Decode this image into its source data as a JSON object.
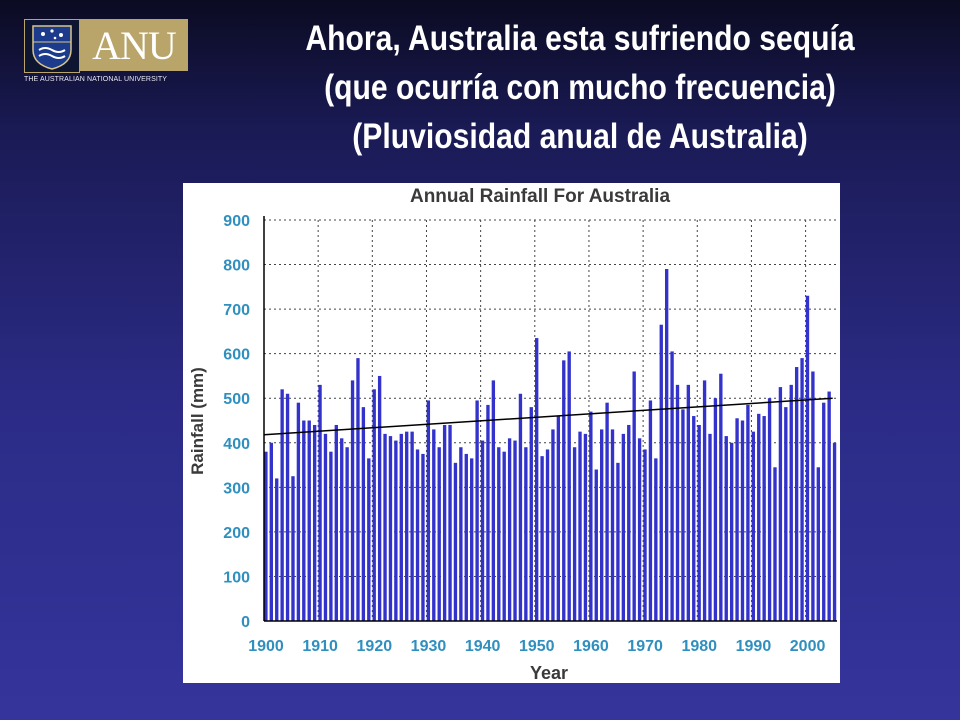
{
  "logo": {
    "wordmark": "ANU",
    "university_name": "THE AUSTRALIAN NATIONAL UNIVERSITY"
  },
  "slide": {
    "title_lines": [
      "Ahora, Australia esta sufriendo sequía",
      "(que ocurría con mucho frecuencia)",
      "(Pluviosidad anual de Australia)"
    ]
  },
  "colors": {
    "bar": "#3333cc",
    "trend": "#000000",
    "tick_text": "#2f8fbf",
    "grid": "#444444"
  },
  "chart_data": {
    "type": "bar",
    "title": "Annual Rainfall For Australia",
    "xlabel": "Year",
    "ylabel": "Rainfall (mm)",
    "ylim": [
      0,
      900
    ],
    "yticks": [
      0,
      100,
      200,
      300,
      400,
      500,
      600,
      700,
      800,
      900
    ],
    "xticks": [
      1900,
      1910,
      1920,
      1930,
      1940,
      1950,
      1960,
      1970,
      1980,
      1990,
      2000
    ],
    "grid": true,
    "x": [
      1900,
      1901,
      1902,
      1903,
      1904,
      1905,
      1906,
      1907,
      1908,
      1909,
      1910,
      1911,
      1912,
      1913,
      1914,
      1915,
      1916,
      1917,
      1918,
      1919,
      1920,
      1921,
      1922,
      1923,
      1924,
      1925,
      1926,
      1927,
      1928,
      1929,
      1930,
      1931,
      1932,
      1933,
      1934,
      1935,
      1936,
      1937,
      1938,
      1939,
      1940,
      1941,
      1942,
      1943,
      1944,
      1945,
      1946,
      1947,
      1948,
      1949,
      1950,
      1951,
      1952,
      1953,
      1954,
      1955,
      1956,
      1957,
      1958,
      1959,
      1960,
      1961,
      1962,
      1963,
      1964,
      1965,
      1966,
      1967,
      1968,
      1969,
      1970,
      1971,
      1972,
      1973,
      1974,
      1975,
      1976,
      1977,
      1978,
      1979,
      1980,
      1981,
      1982,
      1983,
      1984,
      1985,
      1986,
      1987,
      1988,
      1989,
      1990,
      1991,
      1992,
      1993,
      1994,
      1995,
      1996,
      1997,
      1998,
      1999,
      2000,
      2001,
      2002,
      2003,
      2004,
      2005
    ],
    "values": [
      380,
      400,
      320,
      520,
      510,
      325,
      490,
      450,
      450,
      440,
      530,
      420,
      380,
      440,
      410,
      390,
      540,
      590,
      480,
      365,
      520,
      550,
      420,
      415,
      405,
      420,
      425,
      425,
      385,
      375,
      495,
      430,
      390,
      440,
      440,
      355,
      390,
      375,
      365,
      495,
      405,
      485,
      540,
      390,
      380,
      410,
      405,
      510,
      390,
      480,
      635,
      370,
      385,
      430,
      460,
      585,
      605,
      390,
      425,
      420,
      470,
      340,
      430,
      490,
      430,
      355,
      420,
      440,
      560,
      410,
      385,
      495,
      365,
      665,
      790,
      605,
      530,
      475,
      530,
      460,
      440,
      540,
      420,
      500,
      555,
      415,
      400,
      455,
      450,
      485,
      425,
      465,
      460,
      500,
      345,
      525,
      480,
      530,
      570,
      590,
      730,
      560,
      345,
      490,
      515,
      400
    ],
    "trend": {
      "start": [
        1900,
        418
      ],
      "end": [
        2005,
        500
      ]
    }
  }
}
